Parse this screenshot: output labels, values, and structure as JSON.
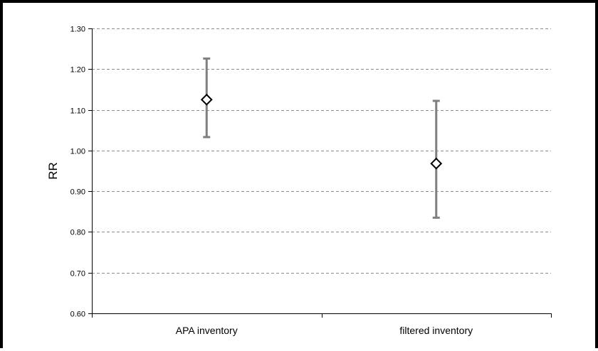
{
  "chart_data": {
    "type": "scatter",
    "title": "",
    "xlabel": "",
    "ylabel": "RR",
    "ylim": [
      0.6,
      1.3
    ],
    "ytick_step": 0.1,
    "yticks": [
      "0.60",
      "0.70",
      "0.80",
      "0.90",
      "1.00",
      "1.10",
      "1.20",
      "1.30"
    ],
    "grid": true,
    "grid_style": "dashed",
    "legend": "none",
    "categories": [
      "APA inventory",
      "filtered inventory"
    ],
    "points": [
      {
        "category": "APA inventory",
        "value": 1.125,
        "lower": 1.033,
        "upper": 1.226
      },
      {
        "category": "filtered inventory",
        "value": 0.968,
        "lower": 0.835,
        "upper": 1.122
      }
    ],
    "colors": {
      "error_bar": "#7f7f7f",
      "marker_fill": "#ffffff",
      "marker_stroke": "#000000",
      "grid": "#8c8c8c",
      "frame": "#000000"
    },
    "marker_shape": "diamond"
  }
}
